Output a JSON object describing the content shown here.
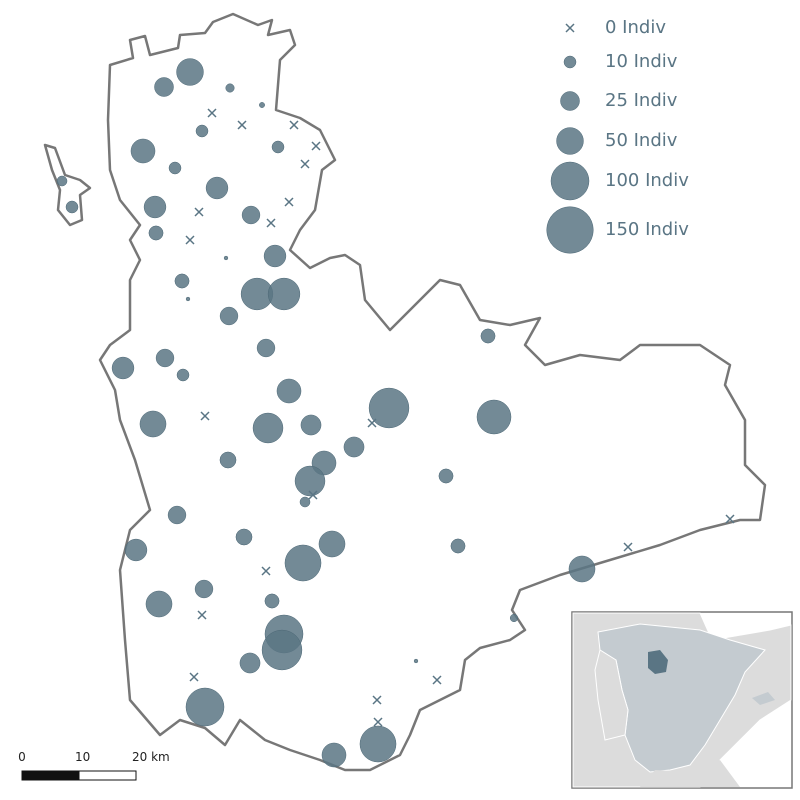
{
  "legend": [
    {
      "value": 0,
      "label": "0 Indiv"
    },
    {
      "value": 10,
      "label": "10 Indiv"
    },
    {
      "value": 25,
      "label": "25 Indiv"
    },
    {
      "value": 50,
      "label": "50 Indiv"
    },
    {
      "value": 100,
      "label": "100 Indiv"
    },
    {
      "value": 150,
      "label": "150 Indiv"
    }
  ],
  "scale_bar": {
    "ticks": [
      0,
      10,
      {
        "value": 20,
        "label": "20 km"
      }
    ]
  },
  "sites": [
    50,
    25,
    5,
    2,
    0,
    0,
    0,
    10,
    0,
    10,
    40,
    0,
    10,
    7,
    33,
    0,
    33,
    0,
    10,
    22,
    0,
    14,
    0,
    1,
    33,
    14,
    1,
    70,
    70,
    22,
    14,
    22,
    22,
    33,
    10,
    40,
    110,
    80,
    0,
    0,
    47,
    62,
    28,
    28,
    18,
    40,
    14,
    62,
    0,
    7,
    22,
    0,
    18,
    47,
    14,
    0,
    33,
    90,
    47,
    0,
    22,
    14,
    47,
    0,
    4,
    100,
    110,
    28,
    1,
    0,
    0,
    0,
    100,
    0,
    40,
    90
  ]
}
